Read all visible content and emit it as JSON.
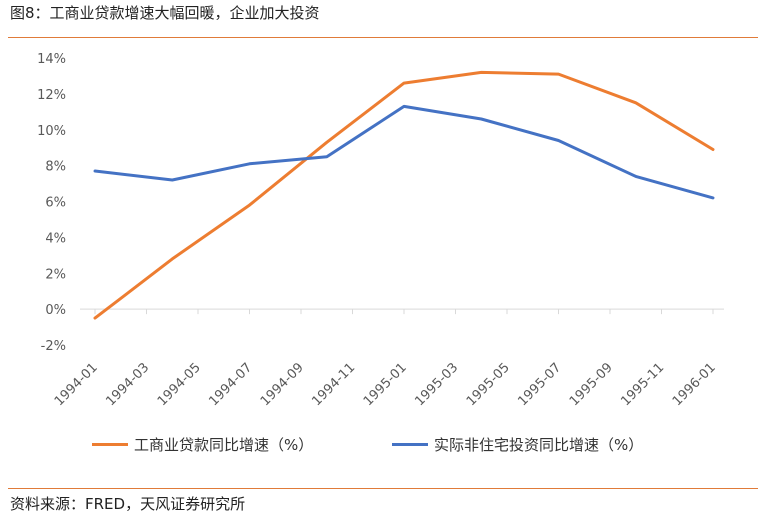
{
  "figure": {
    "title": "图8：工商业贷款增速大幅回暖，企业加大投资",
    "source": "资料来源：FRED，天风证券研究所"
  },
  "colors": {
    "accent_rule": "#e07b39",
    "series1": "#ed7d31",
    "series2": "#4472c4"
  },
  "chart_data": {
    "type": "line",
    "title": "",
    "xlabel": "",
    "ylabel": "",
    "ylim": [
      -0.02,
      0.14
    ],
    "ytick_step": 0.02,
    "y_format": "percent",
    "grid": false,
    "legend_position": "bottom",
    "x_tick_labels": [
      "1994-01",
      "1994-03",
      "1994-05",
      "1994-07",
      "1994-09",
      "1994-11",
      "1995-01",
      "1995-03",
      "1995-05",
      "1995-07",
      "1995-09",
      "1995-11",
      "1996-01"
    ],
    "series": [
      {
        "name": "工商业贷款同比增速（%）",
        "color": "#ed7d31",
        "points": [
          {
            "x": "1994-01",
            "y": -0.005
          },
          {
            "x": "1994-04",
            "y": 0.028
          },
          {
            "x": "1994-07",
            "y": 0.058
          },
          {
            "x": "1994-10",
            "y": 0.093
          },
          {
            "x": "1995-01",
            "y": 0.126
          },
          {
            "x": "1995-04",
            "y": 0.132
          },
          {
            "x": "1995-07",
            "y": 0.131
          },
          {
            "x": "1995-10",
            "y": 0.115
          },
          {
            "x": "1996-01",
            "y": 0.089
          }
        ]
      },
      {
        "name": "实际非住宅投资同比增速（%）",
        "color": "#4472c4",
        "points": [
          {
            "x": "1994-01",
            "y": 0.077
          },
          {
            "x": "1994-04",
            "y": 0.072
          },
          {
            "x": "1994-07",
            "y": 0.081
          },
          {
            "x": "1994-10",
            "y": 0.085
          },
          {
            "x": "1995-01",
            "y": 0.113
          },
          {
            "x": "1995-04",
            "y": 0.106
          },
          {
            "x": "1995-07",
            "y": 0.094
          },
          {
            "x": "1995-10",
            "y": 0.074
          },
          {
            "x": "1996-01",
            "y": 0.062
          }
        ]
      }
    ]
  }
}
